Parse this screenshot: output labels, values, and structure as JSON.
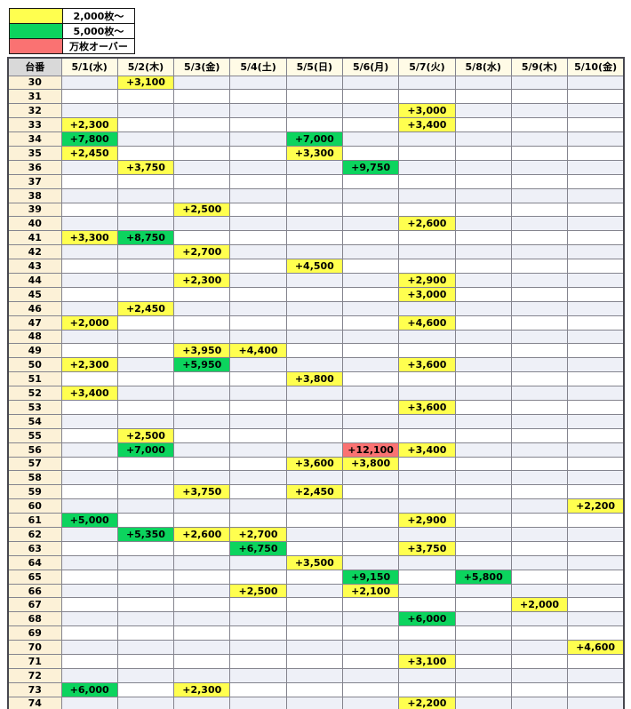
{
  "colors": {
    "yellow": "#ffff4f",
    "green": "#0cd45e",
    "red": "#fa7272",
    "header_bg": "#fffbe6",
    "corner_bg": "#d9d9d9",
    "row_header_bg": "#fcf1d7",
    "stripe_bg": "#eef0f7"
  },
  "legend": {
    "items": [
      {
        "label": "2,000枚～",
        "level": "yellow",
        "color": "#ffff4f"
      },
      {
        "label": "5,000枚～",
        "level": "green",
        "color": "#0cd45e"
      },
      {
        "label": "万枚オーバー",
        "level": "red",
        "color": "#fa7272"
      }
    ]
  },
  "table": {
    "corner_label": "台番",
    "columns": [
      "5/1(水)",
      "5/2(木)",
      "5/3(金)",
      "5/4(土)",
      "5/5(日)",
      "5/6(月)",
      "5/7(火)",
      "5/8(水)",
      "5/9(木)",
      "5/10(金)"
    ],
    "rows": [
      {
        "no": "30",
        "cells": [
          {
            "col": 1,
            "value": "+3,100",
            "level": "yellow"
          }
        ]
      },
      {
        "no": "31",
        "cells": []
      },
      {
        "no": "32",
        "cells": [
          {
            "col": 6,
            "value": "+3,000",
            "level": "yellow"
          }
        ]
      },
      {
        "no": "33",
        "cells": [
          {
            "col": 0,
            "value": "+2,300",
            "level": "yellow"
          },
          {
            "col": 6,
            "value": "+3,400",
            "level": "yellow"
          }
        ]
      },
      {
        "no": "34",
        "cells": [
          {
            "col": 0,
            "value": "+7,800",
            "level": "green"
          },
          {
            "col": 4,
            "value": "+7,000",
            "level": "green"
          }
        ]
      },
      {
        "no": "35",
        "cells": [
          {
            "col": 0,
            "value": "+2,450",
            "level": "yellow"
          },
          {
            "col": 4,
            "value": "+3,300",
            "level": "yellow"
          }
        ]
      },
      {
        "no": "36",
        "cells": [
          {
            "col": 1,
            "value": "+3,750",
            "level": "yellow"
          },
          {
            "col": 5,
            "value": "+9,750",
            "level": "green"
          }
        ]
      },
      {
        "no": "37",
        "cells": []
      },
      {
        "no": "38",
        "cells": []
      },
      {
        "no": "39",
        "cells": [
          {
            "col": 2,
            "value": "+2,500",
            "level": "yellow"
          }
        ]
      },
      {
        "no": "40",
        "cells": [
          {
            "col": 6,
            "value": "+2,600",
            "level": "yellow"
          }
        ]
      },
      {
        "no": "41",
        "cells": [
          {
            "col": 0,
            "value": "+3,300",
            "level": "yellow"
          },
          {
            "col": 1,
            "value": "+8,750",
            "level": "green"
          }
        ]
      },
      {
        "no": "42",
        "cells": [
          {
            "col": 2,
            "value": "+2,700",
            "level": "yellow"
          }
        ]
      },
      {
        "no": "43",
        "cells": [
          {
            "col": 4,
            "value": "+4,500",
            "level": "yellow"
          }
        ]
      },
      {
        "no": "44",
        "cells": [
          {
            "col": 2,
            "value": "+2,300",
            "level": "yellow"
          },
          {
            "col": 6,
            "value": "+2,900",
            "level": "yellow"
          }
        ]
      },
      {
        "no": "45",
        "cells": [
          {
            "col": 6,
            "value": "+3,000",
            "level": "yellow"
          }
        ]
      },
      {
        "no": "46",
        "cells": [
          {
            "col": 1,
            "value": "+2,450",
            "level": "yellow"
          }
        ]
      },
      {
        "no": "47",
        "cells": [
          {
            "col": 0,
            "value": "+2,000",
            "level": "yellow"
          },
          {
            "col": 6,
            "value": "+4,600",
            "level": "yellow"
          }
        ]
      },
      {
        "no": "48",
        "cells": []
      },
      {
        "no": "49",
        "cells": [
          {
            "col": 2,
            "value": "+3,950",
            "level": "yellow"
          },
          {
            "col": 3,
            "value": "+4,400",
            "level": "yellow"
          }
        ]
      },
      {
        "no": "50",
        "cells": [
          {
            "col": 0,
            "value": "+2,300",
            "level": "yellow"
          },
          {
            "col": 2,
            "value": "+5,950",
            "level": "green"
          },
          {
            "col": 6,
            "value": "+3,600",
            "level": "yellow"
          }
        ]
      },
      {
        "no": "51",
        "cells": [
          {
            "col": 4,
            "value": "+3,800",
            "level": "yellow"
          }
        ]
      },
      {
        "no": "52",
        "cells": [
          {
            "col": 0,
            "value": "+3,400",
            "level": "yellow"
          }
        ]
      },
      {
        "no": "53",
        "cells": [
          {
            "col": 6,
            "value": "+3,600",
            "level": "yellow"
          }
        ]
      },
      {
        "no": "54",
        "cells": []
      },
      {
        "no": "55",
        "cells": [
          {
            "col": 1,
            "value": "+2,500",
            "level": "yellow"
          }
        ]
      },
      {
        "no": "56",
        "cells": [
          {
            "col": 1,
            "value": "+7,000",
            "level": "green"
          },
          {
            "col": 5,
            "value": "+12,100",
            "level": "red"
          },
          {
            "col": 6,
            "value": "+3,400",
            "level": "yellow"
          }
        ]
      },
      {
        "no": "57",
        "cells": [
          {
            "col": 4,
            "value": "+3,600",
            "level": "yellow"
          },
          {
            "col": 5,
            "value": "+3,800",
            "level": "yellow"
          }
        ]
      },
      {
        "no": "58",
        "cells": []
      },
      {
        "no": "59",
        "cells": [
          {
            "col": 2,
            "value": "+3,750",
            "level": "yellow"
          },
          {
            "col": 4,
            "value": "+2,450",
            "level": "yellow"
          }
        ]
      },
      {
        "no": "60",
        "cells": [
          {
            "col": 9,
            "value": "+2,200",
            "level": "yellow"
          }
        ]
      },
      {
        "no": "61",
        "cells": [
          {
            "col": 0,
            "value": "+5,000",
            "level": "green"
          },
          {
            "col": 6,
            "value": "+2,900",
            "level": "yellow"
          }
        ]
      },
      {
        "no": "62",
        "cells": [
          {
            "col": 1,
            "value": "+5,350",
            "level": "green"
          },
          {
            "col": 2,
            "value": "+2,600",
            "level": "yellow"
          },
          {
            "col": 3,
            "value": "+2,700",
            "level": "yellow"
          }
        ]
      },
      {
        "no": "63",
        "cells": [
          {
            "col": 3,
            "value": "+6,750",
            "level": "green"
          },
          {
            "col": 6,
            "value": "+3,750",
            "level": "yellow"
          }
        ]
      },
      {
        "no": "64",
        "cells": [
          {
            "col": 4,
            "value": "+3,500",
            "level": "yellow"
          }
        ]
      },
      {
        "no": "65",
        "cells": [
          {
            "col": 5,
            "value": "+9,150",
            "level": "green"
          },
          {
            "col": 7,
            "value": "+5,800",
            "level": "green"
          }
        ]
      },
      {
        "no": "66",
        "cells": [
          {
            "col": 3,
            "value": "+2,500",
            "level": "yellow"
          },
          {
            "col": 5,
            "value": "+2,100",
            "level": "yellow"
          }
        ]
      },
      {
        "no": "67",
        "cells": [
          {
            "col": 8,
            "value": "+2,000",
            "level": "yellow"
          }
        ]
      },
      {
        "no": "68",
        "cells": [
          {
            "col": 6,
            "value": "+6,000",
            "level": "green"
          }
        ]
      },
      {
        "no": "69",
        "cells": []
      },
      {
        "no": "70",
        "cells": [
          {
            "col": 9,
            "value": "+4,600",
            "level": "yellow"
          }
        ]
      },
      {
        "no": "71",
        "cells": [
          {
            "col": 6,
            "value": "+3,100",
            "level": "yellow"
          }
        ]
      },
      {
        "no": "72",
        "cells": []
      },
      {
        "no": "73",
        "cells": [
          {
            "col": 0,
            "value": "+6,000",
            "level": "green"
          },
          {
            "col": 2,
            "value": "+2,300",
            "level": "yellow"
          }
        ]
      },
      {
        "no": "74",
        "cells": [
          {
            "col": 6,
            "value": "+2,200",
            "level": "yellow"
          }
        ]
      }
    ]
  }
}
